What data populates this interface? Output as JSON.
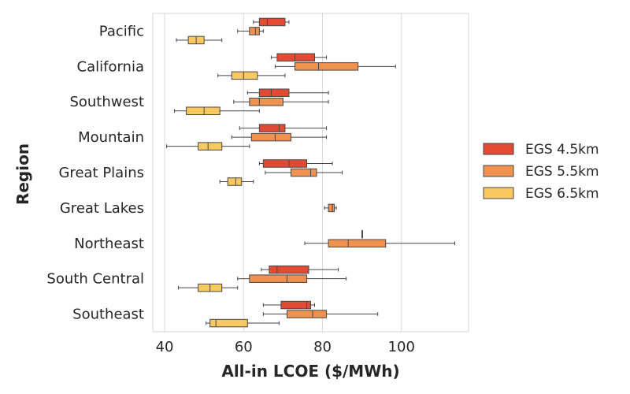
{
  "chart_data": {
    "type": "boxplot",
    "orientation": "horizontal",
    "xlabel": "All-in LCOE ($/MWh)",
    "ylabel": "Region",
    "xlim": [
      37,
      117
    ],
    "xticks": [
      40,
      60,
      80,
      100
    ],
    "grid": true,
    "legend_position": "right",
    "categories": [
      "Pacific",
      "California",
      "Southwest",
      "Mountain",
      "Great Plains",
      "Great Lakes",
      "Northeast",
      "South Central",
      "Southeast"
    ],
    "series": [
      {
        "name": "EGS 4.5km",
        "color": "#e34a33",
        "boxes": [
          {
            "min": 62.5,
            "q1": 64,
            "median": 66,
            "q3": 70.5,
            "max": 71.5
          },
          {
            "min": 67,
            "q1": 68.5,
            "median": 73,
            "q3": 78,
            "max": 81
          },
          {
            "min": 61,
            "q1": 64,
            "median": 67,
            "q3": 71.5,
            "max": 81.5
          },
          {
            "min": 59,
            "q1": 64,
            "median": 69,
            "q3": 70.5,
            "max": 81
          },
          {
            "min": 64,
            "q1": 65,
            "median": 71.5,
            "q3": 76,
            "max": 82.5
          },
          null,
          {
            "min": 90,
            "q1": 90,
            "median": 90,
            "q3": 90,
            "max": 90
          },
          {
            "min": 64.5,
            "q1": 66.5,
            "median": 68.5,
            "q3": 76.5,
            "max": 84
          },
          {
            "min": 65,
            "q1": 69.5,
            "median": 76,
            "q3": 77,
            "max": 78
          }
        ]
      },
      {
        "name": "EGS 5.5km",
        "color": "#f09150",
        "boxes": [
          {
            "min": 58.5,
            "q1": 61.5,
            "median": 63,
            "q3": 64,
            "max": 65
          },
          {
            "min": 68,
            "q1": 73,
            "median": 79,
            "q3": 89,
            "max": 98.5
          },
          {
            "min": 57.5,
            "q1": 61.5,
            "median": 64,
            "q3": 70,
            "max": 81.5
          },
          {
            "min": 57,
            "q1": 62,
            "median": 68,
            "q3": 72,
            "max": 81
          },
          {
            "min": 65.5,
            "q1": 72,
            "median": 77,
            "q3": 78.5,
            "max": 85
          },
          {
            "min": 80.5,
            "q1": 81.5,
            "median": 82.5,
            "q3": 83,
            "max": 83.5
          },
          {
            "min": 75.5,
            "q1": 81.5,
            "median": 86.5,
            "q3": 96,
            "max": 113.5
          },
          {
            "min": 58.5,
            "q1": 61.5,
            "median": 71,
            "q3": 76,
            "max": 86
          },
          {
            "min": 65,
            "q1": 71,
            "median": 77.5,
            "q3": 81,
            "max": 94
          }
        ]
      },
      {
        "name": "EGS 6.5km",
        "color": "#f8c960",
        "boxes": [
          {
            "min": 43,
            "q1": 46,
            "median": 48,
            "q3": 50,
            "max": 54.5
          },
          {
            "min": 53.5,
            "q1": 57,
            "median": 60,
            "q3": 63.5,
            "max": 70.5
          },
          {
            "min": 42.5,
            "q1": 45.5,
            "median": 50,
            "q3": 54,
            "max": 64
          },
          {
            "min": 40.5,
            "q1": 48.5,
            "median": 51,
            "q3": 54.5,
            "max": 61.5
          },
          {
            "min": 54,
            "q1": 56,
            "median": 58,
            "q3": 59.5,
            "max": 62.5
          },
          null,
          null,
          {
            "min": 43.5,
            "q1": 48.5,
            "median": 51.5,
            "q3": 54.5,
            "max": 58.5
          },
          {
            "min": 50.5,
            "q1": 51.5,
            "median": 53,
            "q3": 61,
            "max": 69
          }
        ]
      }
    ]
  }
}
